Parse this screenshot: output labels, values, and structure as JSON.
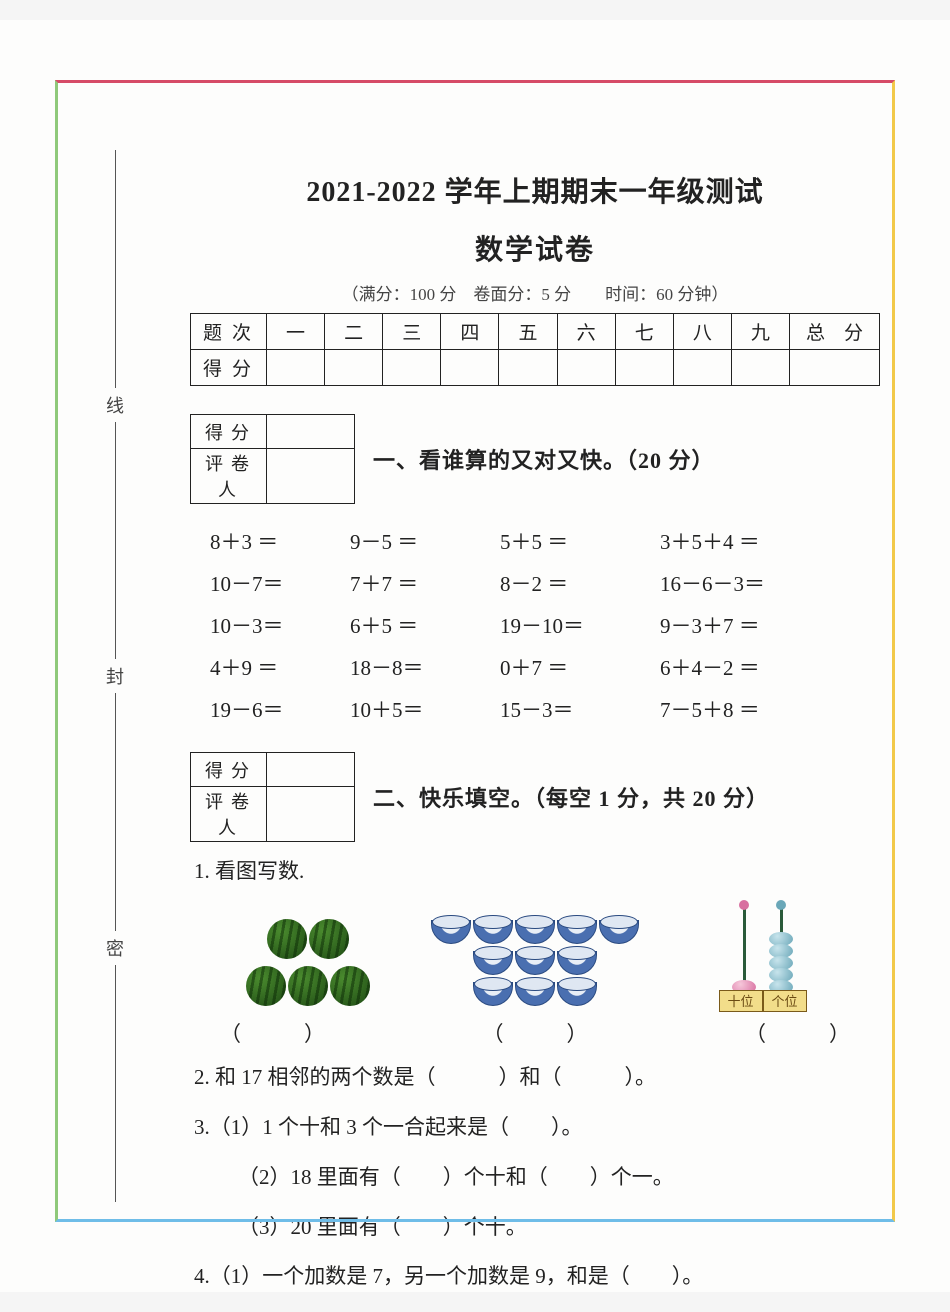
{
  "header": {
    "title1": "2021-2022 学年上期期末一年级测试",
    "title2": "数学试卷",
    "meta": "（满分：100 分　卷面分：5 分　　时间：60 分钟）"
  },
  "binding": {
    "top": "线",
    "mid": "封",
    "bot": "密"
  },
  "score_table": {
    "row1_label": "题次",
    "cols": [
      "一",
      "二",
      "三",
      "四",
      "五",
      "六",
      "七",
      "八",
      "九",
      "总　分"
    ],
    "row2_label": "得分"
  },
  "mini_labels": {
    "score": "得分",
    "marker": "评卷人"
  },
  "section1": {
    "title": "一、看谁算的又对又快。（20 分）"
  },
  "calc": [
    [
      "8＋3 ＝",
      "9－5 ＝",
      "5＋5 ＝",
      "3＋5＋4 ＝"
    ],
    [
      "10－7＝",
      "7＋7 ＝",
      "8－2 ＝",
      "16－6－3＝"
    ],
    [
      "10－3＝",
      "6＋5 ＝",
      "19－10＝",
      "9－3＋7 ＝"
    ],
    [
      "4＋9 ＝",
      "18－8＝",
      "0＋7 ＝",
      "6＋4－2 ＝"
    ],
    [
      "19－6＝",
      "10＋5＝",
      "15－3＝",
      "7－5＋8 ＝"
    ]
  ],
  "section2": {
    "title": "二、快乐填空。（每空 1 分，共 20 分）"
  },
  "q2": {
    "q1": "1. 看图写数.",
    "melon_count": 5,
    "bowl_count": 11,
    "abacus": {
      "tens_label": "十位",
      "ones_label": "个位",
      "tens_beads": 1,
      "ones_beads": 5,
      "tens_color": "pink",
      "ones_color": "blue"
    },
    "paren": "（　　　）",
    "q2_line": "2. 和 17 相邻的两个数是（　　　）和（　　　）。",
    "q3_1": "3.（1）1 个十和 3 个一合起来是（　　）。",
    "q3_2": "（2）18 里面有（　　）个十和（　　）个一。",
    "q3_3": "（3）20 里面有（　　）个十。",
    "q4": "4.（1）一个加数是 7，另一个加数是 9，和是（　　）。"
  },
  "style": {
    "text_color": "#222",
    "border_colors": {
      "top": "#d64b67",
      "right": "#f2c949",
      "bottom": "#6fbde8",
      "left": "#8fc97a"
    }
  }
}
